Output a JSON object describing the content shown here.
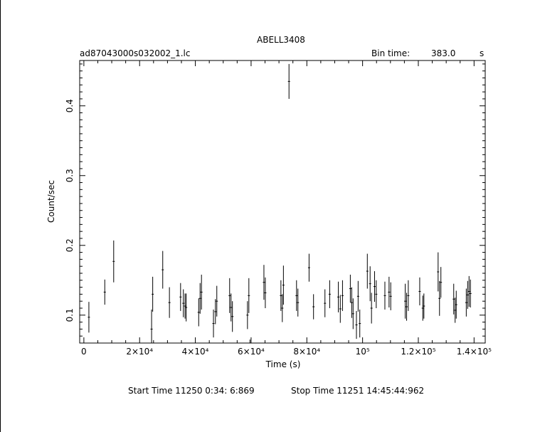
{
  "chart_data": {
    "type": "scatter",
    "title": "ABELL3408",
    "subtitle_left": "ad87043000s032002_1.lc",
    "bin_time_label": "Bin time:",
    "bin_time_value": "383.0",
    "bin_time_unit": "s",
    "xlabel": "Time (s)",
    "ylabel": "Count/sec",
    "xlim": [
      -1500,
      144000
    ],
    "ylim": [
      0.06,
      0.465
    ],
    "x_ticks": [
      0,
      20000,
      40000,
      60000,
      80000,
      100000,
      120000,
      140000
    ],
    "x_tick_labels": [
      "0",
      "2×10⁴",
      "4×10⁴",
      "6×10⁴",
      "8×10⁴",
      "10⁵",
      "1.2×10⁵",
      "1.4×10⁵"
    ],
    "y_ticks": [
      0.1,
      0.2,
      0.3,
      0.4
    ],
    "y_tick_labels": [
      "0.1",
      "0.2",
      "0.3",
      "0.4"
    ],
    "grid": false,
    "error_bars": true,
    "series": [
      {
        "x": [
          1800,
          7500,
          10700,
          24300,
          24700,
          28300,
          30700,
          34700,
          35700,
          36300,
          36700,
          41200,
          41700,
          42200,
          46500,
          47200,
          47700,
          52300,
          52800,
          53300,
          58700,
          59200,
          59600,
          64600,
          65100,
          70700,
          71200,
          71600,
          76300,
          76800,
          80800,
          82400,
          86500,
          88200,
          91300,
          92000,
          92800,
          95600,
          96100,
          96600,
          97800,
          98400,
          99000,
          101700,
          102700,
          103200,
          104300,
          104900,
          108000,
          109500,
          110100,
          115300,
          115800,
          116400,
          120500,
          121600,
          122000,
          127100,
          127600,
          128100,
          132700,
          133200,
          133600,
          137200,
          137700,
          138200,
          138700
        ],
        "y": [
          0.097,
          0.133,
          0.177,
          0.08,
          0.13,
          0.165,
          0.118,
          0.126,
          0.117,
          0.113,
          0.111,
          0.104,
          0.124,
          0.133,
          0.088,
          0.105,
          0.12,
          0.128,
          0.111,
          0.098,
          0.1,
          0.128,
          0.06,
          0.147,
          0.132,
          0.128,
          0.11,
          0.143,
          0.128,
          0.118,
          0.168,
          0.112,
          0.117,
          0.13,
          0.126,
          0.109,
          0.128,
          0.138,
          0.118,
          0.102,
          0.086,
          0.127,
          0.088,
          0.163,
          0.145,
          0.11,
          0.141,
          0.13,
          0.128,
          0.133,
          0.127,
          0.12,
          0.112,
          0.128,
          0.134,
          0.11,
          0.113,
          0.162,
          0.124,
          0.147,
          0.123,
          0.107,
          0.115,
          0.118,
          0.129,
          0.134,
          0.131
        ],
        "yerr": [
          0.022,
          0.018,
          0.03,
          0.028,
          0.025,
          0.027,
          0.022,
          0.02,
          0.02,
          0.018,
          0.02,
          0.02,
          0.022,
          0.025,
          0.02,
          0.018,
          0.022,
          0.025,
          0.02,
          0.022,
          0.02,
          0.025,
          0.005,
          0.025,
          0.022,
          0.022,
          0.02,
          0.028,
          0.022,
          0.02,
          0.02,
          0.018,
          0.02,
          0.02,
          0.022,
          0.02,
          0.022,
          0.02,
          0.022,
          0.022,
          0.02,
          0.022,
          0.02,
          0.025,
          0.025,
          0.022,
          0.022,
          0.02,
          0.02,
          0.022,
          0.02,
          0.025,
          0.02,
          0.022,
          0.02,
          0.018,
          0.018,
          0.028,
          0.025,
          0.022,
          0.022,
          0.018,
          0.02,
          0.02,
          0.02,
          0.022,
          0.02
        ]
      }
    ],
    "outlier": {
      "x": 73600,
      "y": 0.435,
      "yerr": 0.025
    }
  },
  "footer": {
    "start_label": "Start Time 11250  0:34: 6:869",
    "stop_label": "Stop Time 11251 14:45:44:962"
  }
}
